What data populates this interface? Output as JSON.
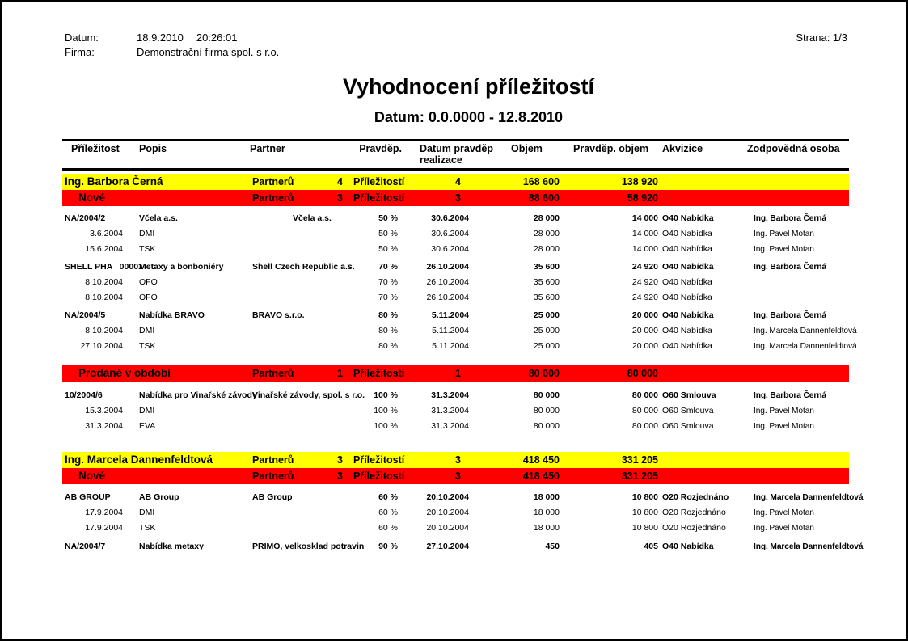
{
  "page_meta": {
    "datum_label": "Datum:",
    "datum_value": "18.9.2010",
    "time_value": "20:26:01",
    "firma_label": "Firma:",
    "firma_value": "Demonstrační firma spol. s r.o.",
    "page_label": "Strana: 1/3"
  },
  "report": {
    "title": "Vyhodnocení příležitostí",
    "subtitle": "Datum: 0.0.0000 - 12.8.2010"
  },
  "table": {
    "headers": {
      "prilezitost": "Příležitost",
      "popis": "Popis",
      "partner": "Partner",
      "pravdep": "Pravděp.",
      "datum_line1": "Datum pravděp",
      "datum_line2": "realizace",
      "objem": "Objem",
      "pravdep_objem": "Pravděp. objem",
      "akvizice": "Akvizice",
      "zodpovedna": "Zodpovědná osoba"
    },
    "colors": {
      "owner_row": "#ffff00",
      "status_row": "#ff0000",
      "text": "#000000"
    },
    "rows": [
      {
        "type": "owner",
        "name": "Ing. Barbora Černá",
        "partneru": "Partnerů",
        "pcount": "4",
        "prilez": "Příležitostí",
        "prcount": "4",
        "objem": "168 600",
        "pobjem": "138 920",
        "gap": 4
      },
      {
        "type": "status",
        "name": "Nové",
        "partneru": "Partnerů",
        "pcount": "3",
        "prilez": "Příležitostí",
        "prcount": "3",
        "objem": "88 600",
        "pobjem": "58 920",
        "gap": 0
      },
      {
        "type": "opp",
        "id": "NA/2004/2",
        "popis": "Včela a.s.",
        "partner": "Včela a.s.",
        "partner_indent": 50,
        "pravdep": "50 %",
        "datum": "30.6.2004",
        "objem": "28 000",
        "pobjem": "14 000",
        "akvizice": "O40 Nabídka",
        "osoba": "Ing. Barbora Černá",
        "gap": 6
      },
      {
        "type": "sub",
        "id": "3.6.2004",
        "popis": "DMI",
        "partner": "",
        "pravdep": "50 %",
        "datum": "30.6.2004",
        "objem": "28 000",
        "pobjem": "14 000",
        "akvizice": "O40 Nabídka",
        "osoba": "Ing. Pavel Motan",
        "gap": 0
      },
      {
        "type": "sub",
        "id": "15.6.2004",
        "popis": "TSK",
        "partner": "",
        "pravdep": "50 %",
        "datum": "30.6.2004",
        "objem": "28 000",
        "pobjem": "14 000",
        "akvizice": "O40 Nabídka",
        "osoba": "Ing. Pavel Motan",
        "gap": 0
      },
      {
        "type": "opp",
        "id": "SHELL PHA   00001",
        "popis": "Metaxy a bonboniéry",
        "partner": "Shell Czech Republic a.s.",
        "pravdep": "70 %",
        "datum": "26.10.2004",
        "objem": "35 600",
        "pobjem": "24 920",
        "akvizice": "O40 Nabídka",
        "osoba": "Ing. Barbora Černá",
        "gap": 3
      },
      {
        "type": "sub",
        "id": "8.10.2004",
        "popis": "OFO",
        "partner": "",
        "pravdep": "70 %",
        "datum": "26.10.2004",
        "objem": "35 600",
        "pobjem": "24 920",
        "akvizice": "O40 Nabídka",
        "osoba": "",
        "gap": 0
      },
      {
        "type": "sub",
        "id": "8.10.2004",
        "popis": "OFO",
        "partner": "",
        "pravdep": "70 %",
        "datum": "26.10.2004",
        "objem": "35 600",
        "pobjem": "24 920",
        "akvizice": "O40 Nabídka",
        "osoba": "",
        "gap": 0
      },
      {
        "type": "opp",
        "id": "NA/2004/5",
        "popis": "Nabídka BRAVO",
        "partner": "BRAVO s.r.o.",
        "pravdep": "80 %",
        "datum": "5.11.2004",
        "objem": "25 000",
        "pobjem": "20 000",
        "akvizice": "O40 Nabídka",
        "osoba": "Ing. Barbora Černá",
        "gap": 3
      },
      {
        "type": "sub",
        "id": "8.10.2004",
        "popis": "DMI",
        "partner": "",
        "pravdep": "80 %",
        "datum": "5.11.2004",
        "objem": "25 000",
        "pobjem": "20 000",
        "akvizice": "O40 Nabídka",
        "osoba": "Ing. Marcela Dannenfeldtová",
        "gap": 0
      },
      {
        "type": "sub",
        "id": "27.10.2004",
        "popis": "TSK",
        "partner": "",
        "pravdep": "80 %",
        "datum": "5.11.2004",
        "objem": "25 000",
        "pobjem": "20 000",
        "akvizice": "O40 Nabídka",
        "osoba": "Ing. Marcela Dannenfeldtová",
        "gap": 0
      },
      {
        "type": "status",
        "name": "Prodané v období",
        "partneru": "Partnerů",
        "pcount": "1",
        "prilez": "Příležitostí",
        "prcount": "1",
        "objem": "80 000",
        "pobjem": "80 000",
        "gap": 14
      },
      {
        "type": "opp",
        "id": "10/2004/6",
        "popis": "Nabídka pro Vinařské závody",
        "partner": "Vinařské závody, spol. s r.o.",
        "pravdep": "100 %",
        "datum": "31.3.2004",
        "objem": "80 000",
        "pobjem": "80 000",
        "akvizice": "O60 Smlouva",
        "osoba": "Ing. Barbora Černá",
        "gap": 8
      },
      {
        "type": "sub",
        "id": "15.3.2004",
        "popis": "DMI",
        "partner": "",
        "pravdep": "100 %",
        "datum": "31.3.2004",
        "objem": "80 000",
        "pobjem": "80 000",
        "akvizice": "O60 Smlouva",
        "osoba": "Ing. Pavel Motan",
        "gap": 0
      },
      {
        "type": "sub",
        "id": "31.3.2004",
        "popis": "EVA",
        "partner": "",
        "pravdep": "100 %",
        "datum": "31.3.2004",
        "objem": "80 000",
        "pobjem": "80 000",
        "akvizice": "O60 Smlouva",
        "osoba": "Ing. Pavel Motan",
        "gap": 0
      },
      {
        "type": "owner",
        "name": "Ing. Marcela Dannenfeldtová",
        "partneru": "Partnerů",
        "pcount": "3",
        "prilez": "Příležitostí",
        "prcount": "3",
        "objem": "418 450",
        "pobjem": "331 205",
        "gap": 22
      },
      {
        "type": "status",
        "name": "Nové",
        "partneru": "Partnerů",
        "pcount": "3",
        "prilez": "Příležitostí",
        "prcount": "3",
        "objem": "418 450",
        "pobjem": "331 205",
        "gap": 0
      },
      {
        "type": "opp",
        "id": "AB GROUP",
        "popis": "AB Group",
        "partner": "AB Group",
        "pravdep": "60 %",
        "datum": "20.10.2004",
        "objem": "18 000",
        "pobjem": "10 800",
        "akvizice": "O20 Rozjednáno",
        "osoba": "Ing. Marcela Dannenfeldtová",
        "gap": 7
      },
      {
        "type": "sub",
        "id": "17.9.2004",
        "popis": "DMI",
        "partner": "",
        "pravdep": "60 %",
        "datum": "20.10.2004",
        "objem": "18 000",
        "pobjem": "10 800",
        "akvizice": "O20 Rozjednáno",
        "osoba": "Ing. Pavel Motan",
        "gap": 0
      },
      {
        "type": "sub",
        "id": "17.9.2004",
        "popis": "TSK",
        "partner": "",
        "pravdep": "60 %",
        "datum": "20.10.2004",
        "objem": "18 000",
        "pobjem": "10 800",
        "akvizice": "O20 Rozjednáno",
        "osoba": "Ing. Pavel Motan",
        "gap": 0
      },
      {
        "type": "opp",
        "id": "NA/2004/7",
        "popis": "Nabídka metaxy",
        "partner": "PRIMO, velkosklad potravin",
        "pravdep": "90 %",
        "datum": "27.10.2004",
        "objem": "450",
        "pobjem": "405",
        "akvizice": "O40 Nabídka",
        "osoba": "Ing. Marcela Dannenfeldtová",
        "gap": 4
      }
    ]
  }
}
